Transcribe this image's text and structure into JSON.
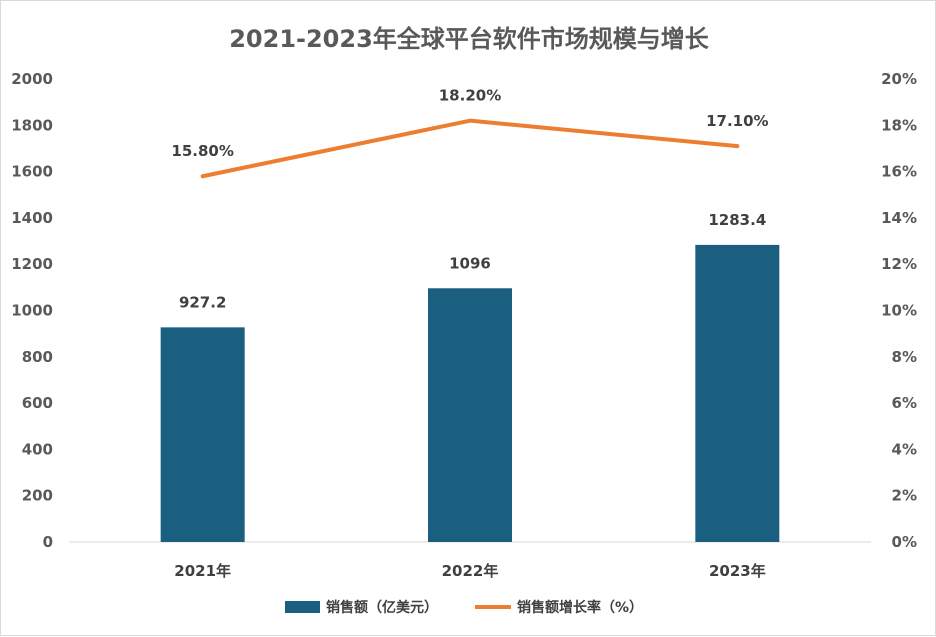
{
  "chart_data": {
    "type": "bar+line",
    "title": "2021-2023年全球平台软件市场规模与增长",
    "categories": [
      "2021年",
      "2022年",
      "2023年"
    ],
    "series": [
      {
        "name": "销售额（亿美元）",
        "type": "bar",
        "axis": "left",
        "values": [
          927.2,
          1096,
          1283.4
        ],
        "labels": [
          "927.2",
          "1096",
          "1283.4"
        ],
        "color": "#1a5f80"
      },
      {
        "name": "销售额增长率（%）",
        "type": "line",
        "axis": "right",
        "values": [
          15.8,
          18.2,
          17.1
        ],
        "labels": [
          "15.80%",
          "18.20%",
          "17.10%"
        ],
        "color": "#ed7d31"
      }
    ],
    "y_left": {
      "min": 0,
      "max": 2000,
      "ticks": [
        "0",
        "200",
        "400",
        "600",
        "800",
        "1000",
        "1200",
        "1400",
        "1600",
        "1800",
        "2000"
      ]
    },
    "y_right": {
      "min": 0,
      "max": 20,
      "ticks": [
        "0%",
        "2%",
        "4%",
        "6%",
        "8%",
        "10%",
        "12%",
        "14%",
        "16%",
        "18%",
        "20%"
      ]
    },
    "grid": false,
    "legend": "bottom"
  }
}
